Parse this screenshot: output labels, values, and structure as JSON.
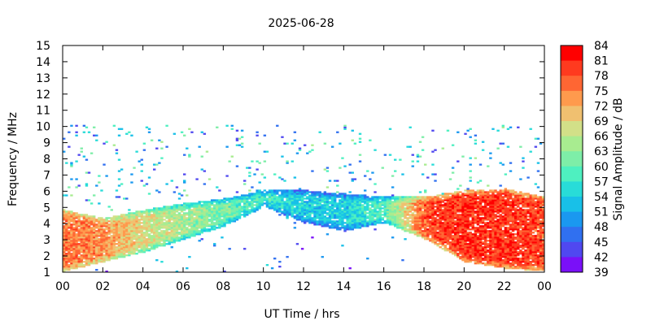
{
  "chart_data": {
    "type": "heatmap",
    "title": "2025-06-28",
    "xlabel": "UT Time / hrs",
    "ylabel": "Frequency / MHz",
    "colorbar_label": "Signal Amplitude / dB",
    "xlim": [
      0,
      24
    ],
    "ylim": [
      1,
      15
    ],
    "x_ticks": [
      "00",
      "02",
      "04",
      "06",
      "08",
      "10",
      "12",
      "14",
      "16",
      "18",
      "20",
      "22",
      "00"
    ],
    "y_ticks": [
      "1",
      "2",
      "3",
      "4",
      "5",
      "6",
      "7",
      "8",
      "9",
      "10",
      "11",
      "12",
      "13",
      "14",
      "15"
    ],
    "colorbar_ticks": [
      "84",
      "81",
      "78",
      "75",
      "72",
      "69",
      "66",
      "63",
      "60",
      "57",
      "54",
      "51",
      "48",
      "45",
      "42",
      "39"
    ],
    "color_range_db": [
      39,
      84
    ],
    "colormap": [
      "#ff0000",
      "#ff3a1f",
      "#ff6633",
      "#ff9a4d",
      "#f0c070",
      "#d2e088",
      "#a8ec90",
      "#7eeea8",
      "#4ef0c0",
      "#28dcd8",
      "#18c0e8",
      "#1a98f0",
      "#3070f0",
      "#5048f0",
      "#7a10f8"
    ],
    "grid": false,
    "legend": "none",
    "amplitude_profile_db": [
      {
        "time_h": 0,
        "lower_mhz": 1.0,
        "upper_mhz": 4.8,
        "peak_db": 80
      },
      {
        "time_h": 2,
        "lower_mhz": 1.6,
        "upper_mhz": 4.3,
        "peak_db": 78
      },
      {
        "time_h": 4,
        "lower_mhz": 2.2,
        "upper_mhz": 4.8,
        "peak_db": 72
      },
      {
        "time_h": 6,
        "lower_mhz": 3.0,
        "upper_mhz": 5.2,
        "peak_db": 68
      },
      {
        "time_h": 8,
        "lower_mhz": 3.8,
        "upper_mhz": 5.5,
        "peak_db": 65
      },
      {
        "time_h": 10,
        "lower_mhz": 5.0,
        "upper_mhz": 6.0,
        "peak_db": 62
      },
      {
        "time_h": 12,
        "lower_mhz": 4.0,
        "upper_mhz": 6.0,
        "peak_db": 58
      },
      {
        "time_h": 14,
        "lower_mhz": 3.5,
        "upper_mhz": 5.8,
        "peak_db": 58
      },
      {
        "time_h": 16,
        "lower_mhz": 4.0,
        "upper_mhz": 5.6,
        "peak_db": 63
      },
      {
        "time_h": 18,
        "lower_mhz": 3.0,
        "upper_mhz": 5.6,
        "peak_db": 82
      },
      {
        "time_h": 20,
        "lower_mhz": 1.6,
        "upper_mhz": 6.0,
        "peak_db": 84
      },
      {
        "time_h": 22,
        "lower_mhz": 1.2,
        "upper_mhz": 6.1,
        "peak_db": 84
      },
      {
        "time_h": 24,
        "lower_mhz": 1.0,
        "upper_mhz": 5.6,
        "peak_db": 82
      }
    ]
  }
}
